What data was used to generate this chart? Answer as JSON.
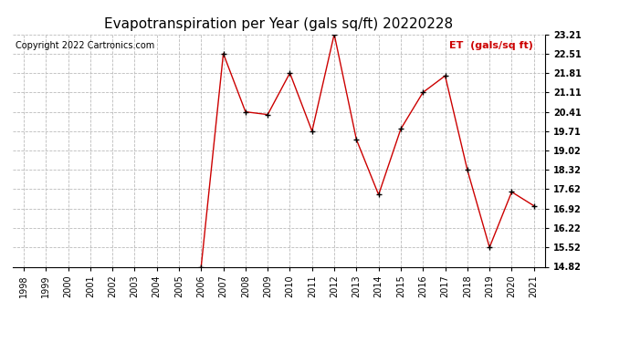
{
  "title": "Evapotranspiration per Year (gals sq/ft) 20220228",
  "copyright": "Copyright 2022 Cartronics.com",
  "legend_label": "ET  (gals/sq ft)",
  "years": [
    1998,
    1999,
    2000,
    2001,
    2002,
    2003,
    2004,
    2005,
    2006,
    2007,
    2008,
    2009,
    2010,
    2011,
    2012,
    2013,
    2014,
    2015,
    2016,
    2017,
    2018,
    2019,
    2020,
    2021
  ],
  "values": [
    null,
    null,
    null,
    null,
    null,
    null,
    null,
    null,
    14.82,
    22.51,
    20.41,
    20.31,
    21.81,
    19.71,
    23.21,
    19.41,
    17.42,
    19.79,
    21.11,
    21.71,
    18.32,
    15.52,
    17.52,
    17.02
  ],
  "yticks": [
    14.82,
    15.52,
    16.22,
    16.92,
    17.62,
    18.32,
    19.02,
    19.71,
    20.41,
    21.11,
    21.81,
    22.51,
    23.21
  ],
  "line_color": "#cc0000",
  "marker": "+",
  "marker_color": "#000000",
  "grid_color": "#bbbbbb",
  "background_color": "#ffffff",
  "title_fontsize": 11,
  "copyright_fontsize": 7,
  "legend_fontsize": 8,
  "tick_fontsize": 7,
  "legend_color": "#cc0000",
  "ylim_min": 14.82,
  "ylim_max": 23.21
}
